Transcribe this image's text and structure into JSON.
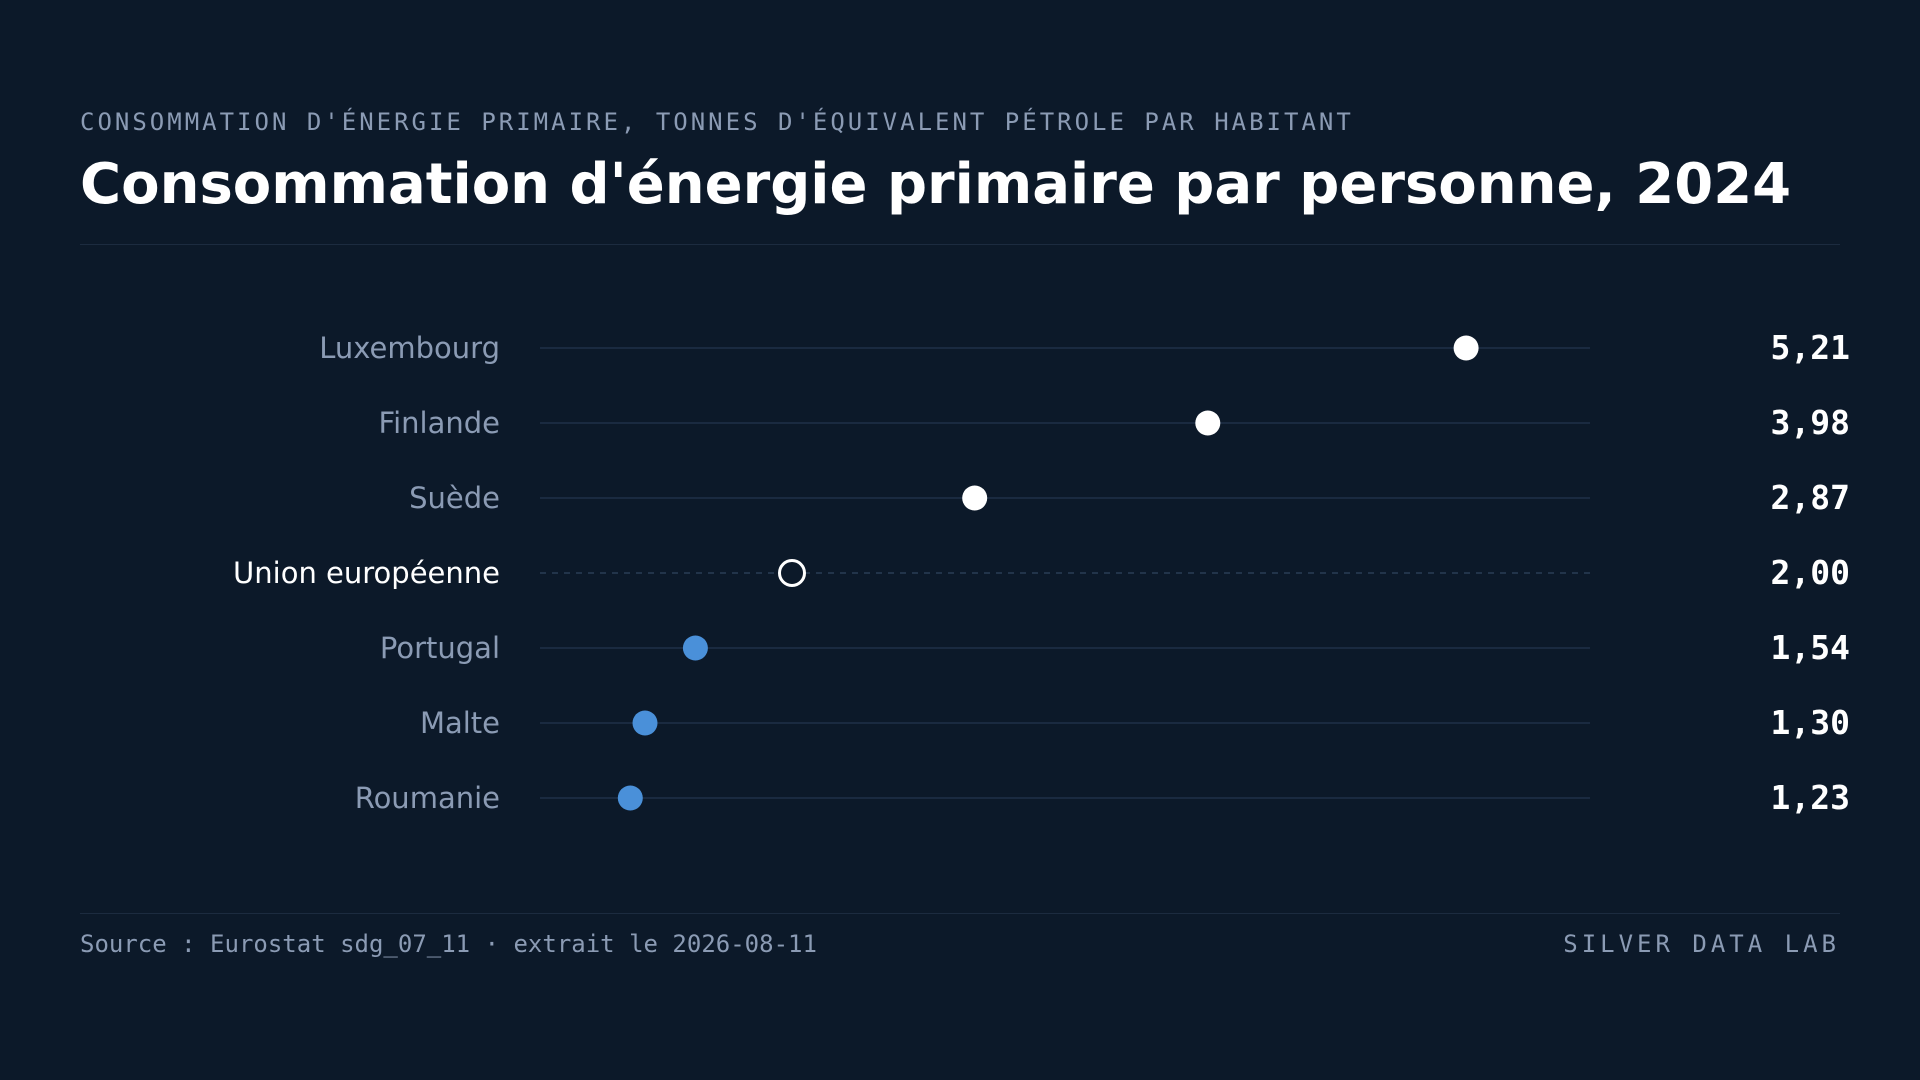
{
  "header": {
    "kicker": "CONSOMMATION D'ÉNERGIE PRIMAIRE, TONNES D'ÉQUIVALENT PÉTROLE PAR HABITANT",
    "title": "Consommation d'énergie primaire par personne, 2024"
  },
  "footer": {
    "source": "Source : Eurostat sdg_07_11 · extrait le 2026-08-11",
    "brand": "SILVER DATA LAB"
  },
  "colors": {
    "background": "#0c1929",
    "above_reference": "#ffffff",
    "below_reference": "#4a90d9",
    "reference": "#ffffff",
    "label_muted": "#8b9bb4",
    "grid": "#1e3048"
  },
  "chart_data": {
    "type": "scatter",
    "subtype": "dot-plot",
    "title": "Consommation d'énergie primaire par personne, 2024",
    "subtitle": "CONSOMMATION D'ÉNERGIE PRIMAIRE, TONNES D'ÉQUIVALENT PÉTROLE PAR HABITANT",
    "xlabel": "",
    "ylabel": "",
    "xlim": [
      0.8,
      5.8
    ],
    "grid": false,
    "legend": "none",
    "categories": [
      "Luxembourg",
      "Finlande",
      "Suède",
      "Union européenne",
      "Portugal",
      "Malte",
      "Roumanie"
    ],
    "values": [
      5.21,
      3.98,
      2.87,
      2.0,
      1.54,
      1.3,
      1.23
    ],
    "value_labels": [
      "5,21",
      "3,98",
      "2,87",
      "2,00",
      "1,54",
      "1,30",
      "1,23"
    ],
    "reference_category": "Union européenne"
  }
}
